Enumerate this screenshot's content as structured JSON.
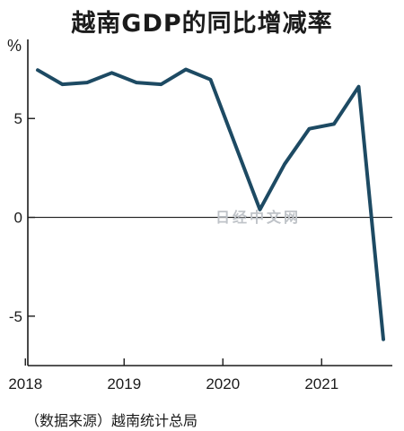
{
  "title": "越南GDP的同比增减率",
  "source": "（数据来源）越南统计总局",
  "watermark": "日经中文网",
  "chart_data": {
    "type": "line",
    "title": "越南GDP的同比增减率",
    "ylabel": "%",
    "xlabel": "",
    "ylim": [
      -7.5,
      9
    ],
    "yticks": [
      5,
      0,
      -5
    ],
    "ytick_labels": [
      "5",
      "0",
      "-5"
    ],
    "xtick_labels": [
      "2018",
      "2019",
      "2020",
      "2021"
    ],
    "grid": false,
    "zero_line": true,
    "line_color": "#1d4a63",
    "series": [
      {
        "quarters": [
          "2018Q1",
          "2018Q2",
          "2018Q3",
          "2018Q4",
          "2019Q1",
          "2019Q2",
          "2019Q3",
          "2019Q4",
          "2020Q1",
          "2020Q2",
          "2020Q3",
          "2020Q4",
          "2021Q1",
          "2021Q2",
          "2021Q3"
        ],
        "values": [
          7.45,
          6.73,
          6.82,
          7.31,
          6.82,
          6.73,
          7.48,
          6.97,
          3.68,
          0.39,
          2.69,
          4.48,
          4.72,
          6.61,
          -6.17
        ]
      }
    ]
  }
}
